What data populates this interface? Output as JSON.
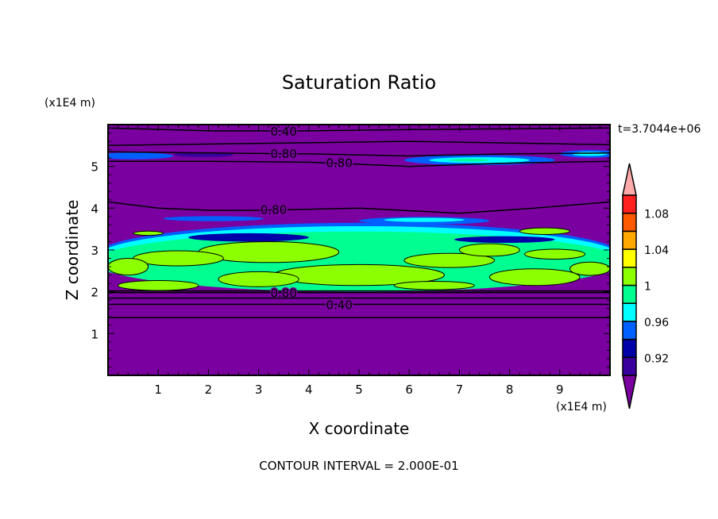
{
  "chart_data": {
    "type": "heatmap",
    "title": "Saturation Ratio",
    "xlabel": "X coordinate",
    "ylabel": "Z coordinate",
    "x_units": "(x1E4 m)",
    "y_units": "(x1E4 m)",
    "xlim": [
      0,
      10
    ],
    "ylim": [
      0,
      6
    ],
    "x_ticks": [
      "1",
      "2",
      "3",
      "4",
      "5",
      "6",
      "7",
      "8",
      "9"
    ],
    "y_ticks": [
      "1",
      "2",
      "3",
      "4",
      "5"
    ],
    "time_label": "t=3.7044e+06",
    "footer": "CONTOUR INTERVAL = 2.000E-01",
    "colorbar": {
      "levels": [
        0.9,
        0.92,
        0.94,
        0.96,
        0.98,
        1.0,
        1.02,
        1.04,
        1.06,
        1.08,
        1.1
      ],
      "colors": [
        "#3a009e",
        "#0000a8",
        "#0060ff",
        "#00ffff",
        "#00ff90",
        "#8cff00",
        "#ffff00",
        "#ffa800",
        "#ff5a00",
        "#ff2020"
      ],
      "under_color": "#7a00a0",
      "over_color": "#ffaaaa",
      "tick_labels": [
        {
          "value": 0.92,
          "label": "0.92"
        },
        {
          "value": 0.96,
          "label": "0.96"
        },
        {
          "value": 1.0,
          "label": "1"
        },
        {
          "value": 1.04,
          "label": "1.04"
        },
        {
          "value": 1.08,
          "label": "1.08"
        }
      ]
    },
    "background_color": "#7a00a0",
    "fill_regions": [
      {
        "color": "#0060ff",
        "cx": 5.0,
        "cz": 2.9,
        "rx": 5.2,
        "rz": 0.75
      },
      {
        "color": "#00ffff",
        "cx": 5.0,
        "cz": 2.85,
        "rx": 5.2,
        "rz": 0.72
      },
      {
        "color": "#00ff90",
        "cx": 5.0,
        "cz": 2.72,
        "rx": 5.3,
        "rz": 0.72
      },
      {
        "color": "#0000a8",
        "cx": 2.8,
        "cz": 3.3,
        "rx": 1.2,
        "rz": 0.1
      },
      {
        "color": "#0000a8",
        "cx": 7.9,
        "cz": 3.25,
        "rx": 1.0,
        "rz": 0.08
      },
      {
        "color": "#0060ff",
        "cx": 6.3,
        "cz": 3.7,
        "rx": 1.3,
        "rz": 0.09
      },
      {
        "color": "#00ffff",
        "cx": 6.3,
        "cz": 3.72,
        "rx": 0.8,
        "rz": 0.05
      },
      {
        "color": "#0060ff",
        "cx": 2.1,
        "cz": 3.75,
        "rx": 1.0,
        "rz": 0.06
      },
      {
        "color": "#0060ff",
        "cx": 7.4,
        "cz": 5.15,
        "rx": 1.5,
        "rz": 0.12
      },
      {
        "color": "#00ffff",
        "cx": 7.4,
        "cz": 5.15,
        "rx": 1.0,
        "rz": 0.07
      },
      {
        "color": "#00ff90",
        "cx": 7.2,
        "cz": 5.15,
        "rx": 0.4,
        "rz": 0.03
      },
      {
        "color": "#0060ff",
        "cx": 9.6,
        "cz": 5.3,
        "rx": 0.6,
        "rz": 0.09
      },
      {
        "color": "#00ffff",
        "cx": 9.6,
        "cz": 5.3,
        "rx": 0.35,
        "rz": 0.05
      },
      {
        "color": "#0060ff",
        "cx": 0.5,
        "cz": 5.25,
        "rx": 0.8,
        "rz": 0.08
      },
      {
        "color": "#3a009e",
        "cx": 1.9,
        "cz": 5.28,
        "rx": 0.6,
        "rz": 0.06
      },
      {
        "color": "#8cff00",
        "cx": 3.2,
        "cz": 2.95,
        "rx": 1.4,
        "rz": 0.25
      },
      {
        "color": "#8cff00",
        "cx": 1.4,
        "cz": 2.8,
        "rx": 0.9,
        "rz": 0.18
      },
      {
        "color": "#8cff00",
        "cx": 0.4,
        "cz": 2.6,
        "rx": 0.4,
        "rz": 0.2
      },
      {
        "color": "#8cff00",
        "cx": 5.0,
        "cz": 2.4,
        "rx": 1.7,
        "rz": 0.25
      },
      {
        "color": "#8cff00",
        "cx": 3.0,
        "cz": 2.3,
        "rx": 0.8,
        "rz": 0.18
      },
      {
        "color": "#8cff00",
        "cx": 6.8,
        "cz": 2.75,
        "rx": 0.9,
        "rz": 0.17
      },
      {
        "color": "#8cff00",
        "cx": 7.6,
        "cz": 3.0,
        "rx": 0.6,
        "rz": 0.15
      },
      {
        "color": "#8cff00",
        "cx": 8.9,
        "cz": 2.9,
        "rx": 0.6,
        "rz": 0.12
      },
      {
        "color": "#8cff00",
        "cx": 8.5,
        "cz": 2.35,
        "rx": 0.9,
        "rz": 0.2
      },
      {
        "color": "#8cff00",
        "cx": 9.6,
        "cz": 2.55,
        "rx": 0.4,
        "rz": 0.16
      },
      {
        "color": "#8cff00",
        "cx": 1.0,
        "cz": 2.15,
        "rx": 0.8,
        "rz": 0.12
      },
      {
        "color": "#8cff00",
        "cx": 6.5,
        "cz": 2.15,
        "rx": 0.8,
        "rz": 0.1
      },
      {
        "color": "#8cff00",
        "cx": 8.7,
        "cz": 3.45,
        "rx": 0.5,
        "rz": 0.08
      },
      {
        "color": "#8cff00",
        "cx": 0.8,
        "cz": 3.4,
        "rx": 0.3,
        "rz": 0.05
      }
    ],
    "contours": [
      {
        "label": "0.40",
        "points": [
          [
            0,
            5.92
          ],
          [
            2,
            5.85
          ],
          [
            4,
            5.85
          ],
          [
            6,
            5.88
          ],
          [
            8,
            5.9
          ],
          [
            10,
            5.92
          ]
        ],
        "label_at": [
          3.5,
          5.85
        ]
      },
      {
        "label": "",
        "points": [
          [
            0,
            5.5
          ],
          [
            3,
            5.55
          ],
          [
            6,
            5.6
          ],
          [
            8.5,
            5.55
          ],
          [
            10,
            5.52
          ]
        ]
      },
      {
        "label": "0.80",
        "points": [
          [
            0,
            5.35
          ],
          [
            2,
            5.32
          ],
          [
            4,
            5.3
          ],
          [
            6,
            5.25
          ],
          [
            8,
            5.3
          ],
          [
            10,
            5.32
          ]
        ],
        "label_at": [
          3.5,
          5.32
        ]
      },
      {
        "label": "0.80",
        "points": [
          [
            0,
            5.12
          ],
          [
            2,
            5.12
          ],
          [
            4,
            5.1
          ],
          [
            5,
            5.05
          ],
          [
            6,
            5.0
          ],
          [
            8,
            5.08
          ],
          [
            10,
            5.12
          ]
        ],
        "label_at": [
          3.5,
          5.1
        ]
      },
      {
        "label": "0.80",
        "points": [
          [
            0,
            4.15
          ],
          [
            1,
            4.0
          ],
          [
            2,
            3.95
          ],
          [
            3,
            3.95
          ],
          [
            5,
            4.0
          ],
          [
            7,
            3.88
          ],
          [
            8.5,
            4.0
          ],
          [
            10,
            4.15
          ]
        ],
        "label_at": [
          3.3,
          3.98
        ]
      },
      {
        "label": "",
        "points": [
          [
            0,
            2.02
          ],
          [
            10,
            2.02
          ]
        ]
      },
      {
        "label": "0.80",
        "points": [
          [
            0,
            1.98
          ],
          [
            10,
            1.98
          ]
        ],
        "label_at": [
          3.5,
          1.98
        ]
      },
      {
        "label": "",
        "points": [
          [
            0,
            1.85
          ],
          [
            10,
            1.85
          ]
        ]
      },
      {
        "label": "0.40",
        "points": [
          [
            0,
            1.7
          ],
          [
            10,
            1.7
          ]
        ],
        "label_at": [
          3.5,
          1.7
        ]
      },
      {
        "label": "",
        "points": [
          [
            0,
            1.38
          ],
          [
            10,
            1.38
          ]
        ]
      }
    ]
  }
}
